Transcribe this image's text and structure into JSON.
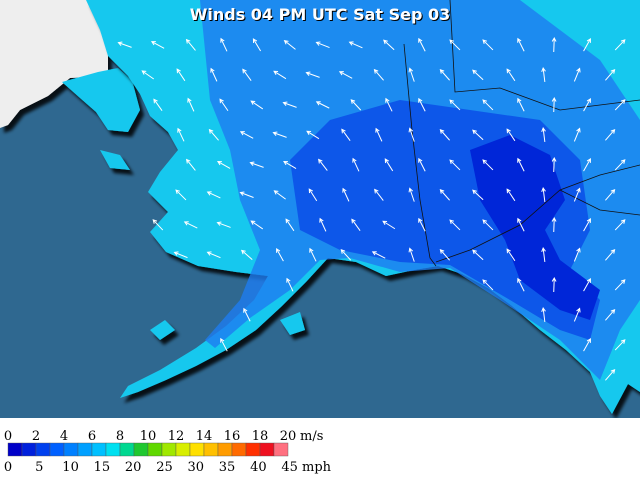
{
  "title": "Winds 04 PM UTC Sat Sep 03",
  "legend": {
    "ms": {
      "unit": "m/s",
      "labels": [
        0,
        2,
        4,
        6,
        8,
        10,
        12,
        14,
        16,
        18,
        20
      ]
    },
    "mph": {
      "unit": "mph",
      "labels": [
        0,
        5,
        10,
        15,
        20,
        25,
        30,
        35,
        40,
        45
      ]
    },
    "colors": [
      "#0000c8",
      "#0020dc",
      "#0040ee",
      "#0060ff",
      "#0080ff",
      "#00a0ff",
      "#00c0ff",
      "#00e0f0",
      "#00d890",
      "#20c830",
      "#60d800",
      "#a0e800",
      "#d8ee00",
      "#ffe000",
      "#ffc000",
      "#ff9c00",
      "#ff6a00",
      "#ff3000",
      "#ee1020",
      "#ff7080"
    ]
  }
}
